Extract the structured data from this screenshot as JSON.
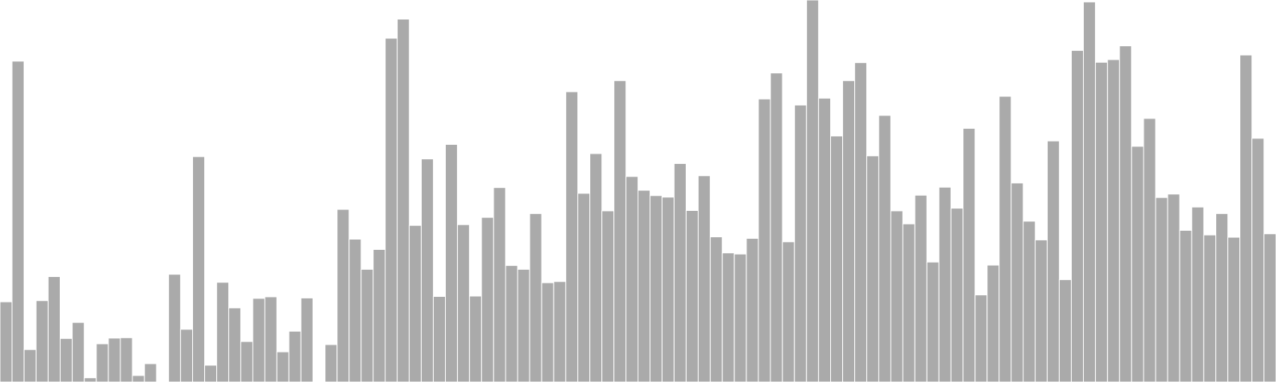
{
  "chart_data": {
    "type": "bar",
    "title": "",
    "xlabel": "",
    "ylabel": "",
    "ylim": [
      0,
      100
    ],
    "grid": false,
    "legend": "none",
    "bar_color": "#aaaaaa",
    "values": [
      21,
      84,
      8.5,
      21.3,
      27.6,
      11.4,
      15.6,
      1.1,
      10,
      11.5,
      11.6,
      1.7,
      4.8,
      0,
      28.2,
      13.8,
      59,
      4.4,
      26.1,
      19.4,
      10.6,
      21.9,
      22.3,
      7.9,
      13.3,
      22,
      0,
      9.8,
      45.2,
      37.4,
      29.5,
      34.7,
      90,
      95,
      41,
      58.4,
      22.4,
      62.2,
      41.2,
      22.5,
      43.1,
      50.9,
      30.5,
      29.5,
      44.1,
      26,
      26.3,
      76,
      49.4,
      59.8,
      44.8,
      78.9,
      53.8,
      50.2,
      48.8,
      48.4,
      57.2,
      44.9,
      54,
      38,
      33.8,
      33.5,
      37.6,
      74.1,
      80.9,
      36.7,
      72.5,
      100,
      74.3,
      64.4,
      78.9,
      83.6,
      59.2,
      69.8,
      44.8,
      41.4,
      48.9,
      31.4,
      51,
      45.5,
      66.4,
      22.8,
      30.6,
      74.8,
      52.1,
      42.1,
      37.2,
      63.1,
      26.8,
      86.8,
      99.5,
      83.7,
      84.4,
      88,
      61.7,
      69,
      48.3,
      49.2,
      39.7,
      45.8,
      38.5,
      44.1,
      37.9,
      85.6,
      63.8,
      38.8
    ]
  }
}
